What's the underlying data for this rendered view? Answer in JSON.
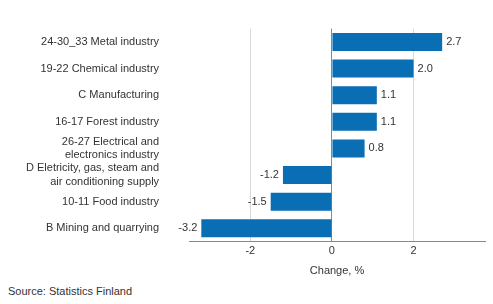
{
  "chart_data": {
    "type": "bar",
    "orientation": "horizontal",
    "categories": [
      "24-30_33 Metal industry",
      "19-22 Chemical industry",
      "C Manufacturing",
      "16-17 Forest industry",
      "26-27 Electrical and electronics industry",
      "D Eletricity, gas, steam and air conditioning supply",
      "10-11 Food industry",
      "B Mining and quarrying"
    ],
    "values": [
      2.7,
      2.0,
      1.1,
      1.1,
      0.8,
      -1.2,
      -1.5,
      -3.2
    ],
    "value_labels": [
      "2.7",
      "2.0",
      "1.1",
      "1.1",
      "0.8",
      "-1.2",
      "-1.5",
      "-3.2"
    ],
    "color": "#0a6eb4",
    "xlabel": "Change, %",
    "source": "Source: Statistics Finland",
    "xlim": [
      -3.5,
      3.75
    ],
    "xticks": [
      -2,
      0,
      2
    ],
    "grid": true,
    "data_labels": true
  }
}
